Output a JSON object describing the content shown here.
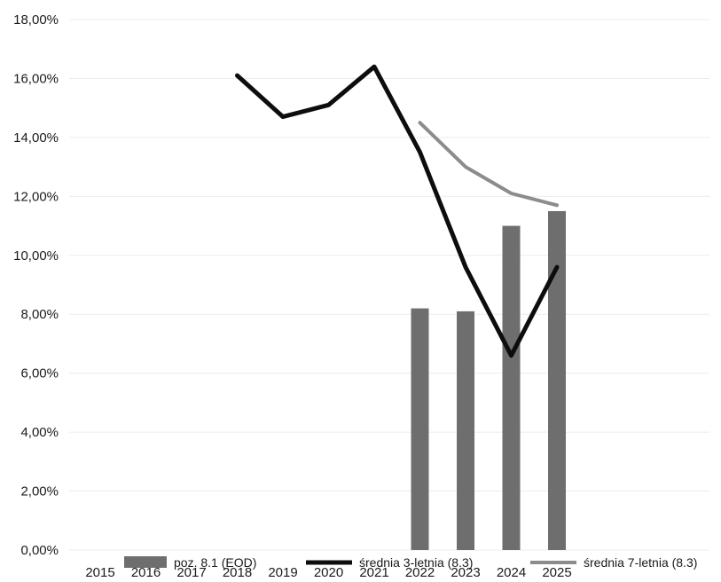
{
  "chart_data": {
    "type": "bar",
    "categories": [
      "2015",
      "2016",
      "2017",
      "2018",
      "2019",
      "2020",
      "2021",
      "2022",
      "2023",
      "2024",
      "2025"
    ],
    "ylim": [
      0,
      18
    ],
    "y_ticks": [
      0,
      2,
      4,
      6,
      8,
      10,
      12,
      14,
      16,
      18
    ],
    "y_tick_labels": [
      "0,00%",
      "2,00%",
      "4,00%",
      "6,00%",
      "8,00%",
      "10,00%",
      "12,00%",
      "14,00%",
      "16,00%",
      "18,00%"
    ],
    "grid": true,
    "legend_position": "bottom",
    "series": [
      {
        "name": "poz. 8.1 (EOD)",
        "kind": "bar",
        "color": "#6e6e6e",
        "values": [
          null,
          null,
          null,
          null,
          null,
          null,
          null,
          8.2,
          8.1,
          11.0,
          11.5
        ]
      },
      {
        "name": "średnia 3-letnia (8.3)",
        "kind": "line",
        "color": "#0d0d0d",
        "values": [
          null,
          null,
          null,
          16.1,
          14.7,
          15.1,
          16.4,
          13.5,
          9.6,
          6.6,
          9.6
        ]
      },
      {
        "name": "średnia 7-letnia (8.3)",
        "kind": "line",
        "color": "#8c8c8c",
        "values": [
          null,
          null,
          null,
          null,
          null,
          null,
          null,
          14.5,
          13.0,
          12.1,
          11.7
        ]
      }
    ]
  }
}
